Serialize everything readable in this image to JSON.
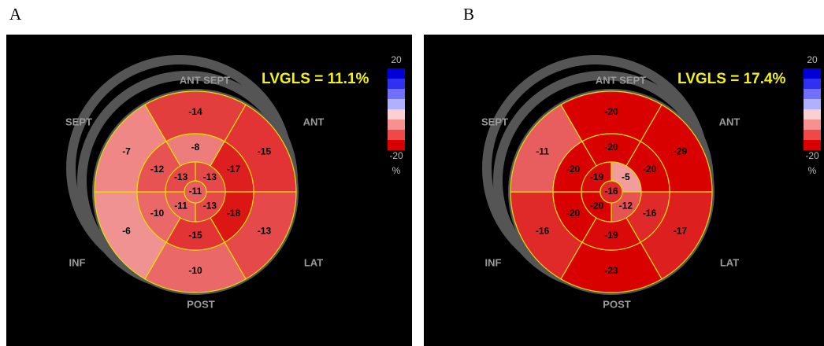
{
  "panels": [
    {
      "letter": "A",
      "lvgls": "LVGLS = 11.1%",
      "orientation": [
        "ANT SEPT",
        "ANT",
        "LAT",
        "POST",
        "INF",
        "SEPT"
      ],
      "scale": {
        "max": 20,
        "min": -20,
        "unit": "%"
      },
      "segments": {
        "basal": [
          -14,
          -15,
          -13,
          -10,
          -6,
          -7
        ],
        "mid": [
          -8,
          -17,
          -18,
          -15,
          -10,
          -12
        ],
        "apical": [
          -13,
          -13,
          -13,
          -11
        ],
        "apex": -11
      }
    },
    {
      "letter": "B",
      "lvgls": "LVGLS = 17.4%",
      "orientation": [
        "ANT SEPT",
        "ANT",
        "LAT",
        "POST",
        "INF",
        "SEPT"
      ],
      "scale": {
        "max": 20,
        "min": -20,
        "unit": "%"
      },
      "segments": {
        "basal": [
          -20,
          -29,
          -17,
          -23,
          -16,
          -11
        ],
        "mid": [
          -20,
          -20,
          -16,
          -19,
          -20,
          -20
        ],
        "apical": [
          -19,
          -5,
          -12,
          -20
        ],
        "apex": -16
      }
    }
  ]
}
